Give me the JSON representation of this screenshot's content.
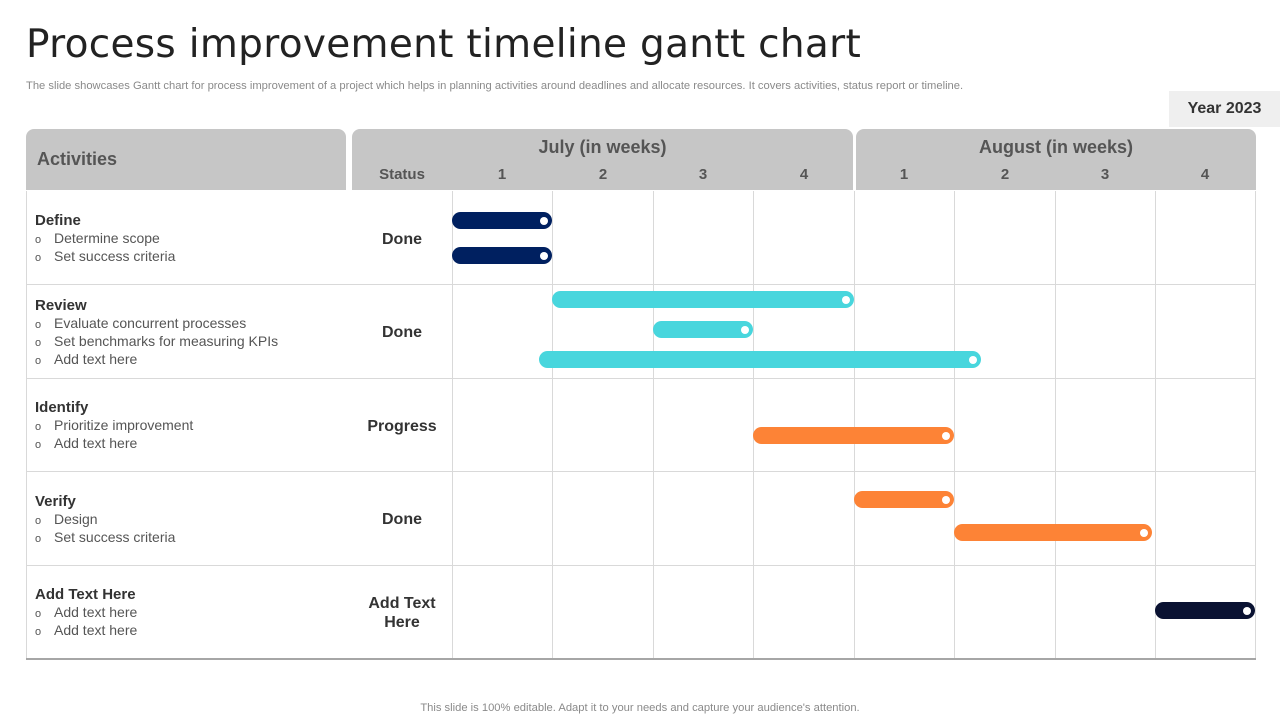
{
  "title": "Process improvement timeline gantt chart",
  "subtitle": "The slide showcases Gantt chart for process improvement of a project which helps in planning activities around deadlines and allocate resources. It covers activities, status report or timeline.",
  "year_badge": "Year 2023",
  "footer": "This slide is 100% editable. Adapt it to your needs and capture your audience's attention.",
  "header": {
    "activities_label": "Activities",
    "status_label": "Status",
    "months": [
      {
        "label": "July (in weeks)",
        "weeks": [
          "1",
          "2",
          "3",
          "4"
        ]
      },
      {
        "label": "August (in weeks)",
        "weeks": [
          "1",
          "2",
          "3",
          "4"
        ]
      }
    ]
  },
  "colors": {
    "navy": "#002060",
    "cyan": "#48d6dd",
    "orange": "#fd8336",
    "dark_navy": "#0a1232",
    "header_bg": "#c6c6c6"
  },
  "rows": [
    {
      "title": "Define",
      "items": [
        "Determine scope",
        "Set success criteria"
      ],
      "status": "Done"
    },
    {
      "title": "Review",
      "items": [
        "Evaluate concurrent processes",
        "Set benchmarks for measuring KPIs",
        "Add text here"
      ],
      "status": "Done"
    },
    {
      "title": "Identify",
      "items": [
        "Prioritize improvement",
        "Add text here"
      ],
      "status": "Progress"
    },
    {
      "title": "Verify",
      "items": [
        "Design",
        "Set success criteria"
      ],
      "status": "Done"
    },
    {
      "title": "Add Text Here",
      "items": [
        "Add text here",
        "Add text here"
      ],
      "status": "Add Text Here"
    }
  ],
  "chart_data": {
    "type": "gantt",
    "x_unit": "week (July weeks 1-4, August weeks 5-8)",
    "xlim": [
      0,
      8
    ],
    "tasks": [
      {
        "row": "Define",
        "item": "Determine scope",
        "start": 0,
        "end": 1,
        "color": "navy"
      },
      {
        "row": "Define",
        "item": "Set success criteria",
        "start": 0,
        "end": 1,
        "color": "navy"
      },
      {
        "row": "Review",
        "item": "Evaluate concurrent processes",
        "start": 1,
        "end": 4,
        "color": "cyan"
      },
      {
        "row": "Review",
        "item": "Set benchmarks for measuring KPIs",
        "start": 2,
        "end": 3,
        "color": "cyan"
      },
      {
        "row": "Review",
        "item": "Add text here",
        "start": 0.87,
        "end": 5.27,
        "color": "cyan"
      },
      {
        "row": "Identify",
        "item": "Prioritize improvement",
        "start": 3,
        "end": 5,
        "color": "orange"
      },
      {
        "row": "Verify",
        "item": "Design",
        "start": 4,
        "end": 5,
        "color": "orange"
      },
      {
        "row": "Verify",
        "item": "Set success criteria",
        "start": 5,
        "end": 6.97,
        "color": "orange"
      },
      {
        "row": "Add Text Here",
        "item": "Add text here",
        "start": 7,
        "end": 8,
        "color": "dark_navy"
      }
    ]
  }
}
